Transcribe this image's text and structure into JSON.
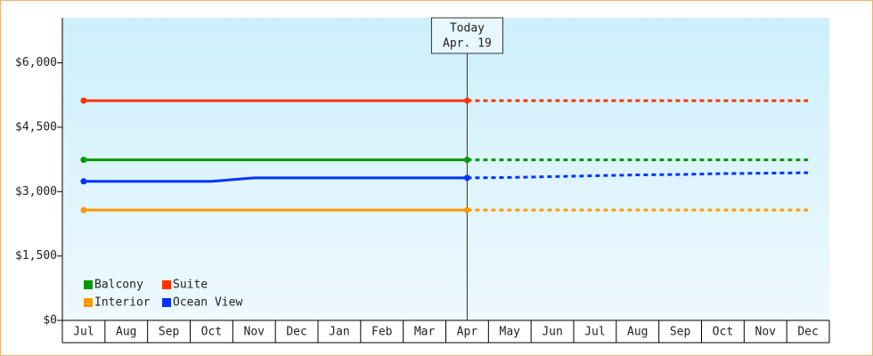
{
  "chart_data": {
    "type": "line",
    "categories": [
      "Jul",
      "Aug",
      "Sep",
      "Oct",
      "Nov",
      "Dec",
      "Jan",
      "Feb",
      "Mar",
      "Apr",
      "May",
      "Jun",
      "Jul",
      "Aug",
      "Sep",
      "Oct",
      "Nov",
      "Dec"
    ],
    "series": [
      {
        "name": "Balcony",
        "color": "#009900",
        "values": [
          3740,
          3740,
          3740,
          3740,
          3740,
          3740,
          3740,
          3740,
          3740,
          3740,
          3740,
          3740,
          3740,
          3740,
          3740,
          3740,
          3740,
          3740
        ]
      },
      {
        "name": "Suite",
        "color": "#ff3300",
        "values": [
          5120,
          5120,
          5120,
          5120,
          5120,
          5120,
          5120,
          5120,
          5120,
          5120,
          5120,
          5120,
          5120,
          5120,
          5120,
          5120,
          5120,
          5120
        ]
      },
      {
        "name": "Interior",
        "color": "#ff9900",
        "values": [
          2570,
          2570,
          2570,
          2570,
          2570,
          2570,
          2570,
          2570,
          2570,
          2570,
          2570,
          2570,
          2570,
          2570,
          2570,
          2570,
          2570,
          2570
        ]
      },
      {
        "name": "Ocean View",
        "color": "#0033ff",
        "values": [
          3240,
          3240,
          3240,
          3240,
          3320,
          3320,
          3320,
          3320,
          3320,
          3320,
          3330,
          3350,
          3370,
          3390,
          3400,
          3420,
          3430,
          3440
        ]
      }
    ],
    "ylim": [
      0,
      7050
    ],
    "yticks": [
      {
        "value": 0,
        "label": "$0"
      },
      {
        "value": 1500,
        "label": "$1,500"
      },
      {
        "value": 3000,
        "label": "$3,000"
      },
      {
        "value": 4500,
        "label": "$4,500"
      },
      {
        "value": 6000,
        "label": "$6,000"
      }
    ],
    "today": {
      "label": "Today",
      "date": "Apr. 19",
      "category": 9
    },
    "legend": "lower left"
  }
}
